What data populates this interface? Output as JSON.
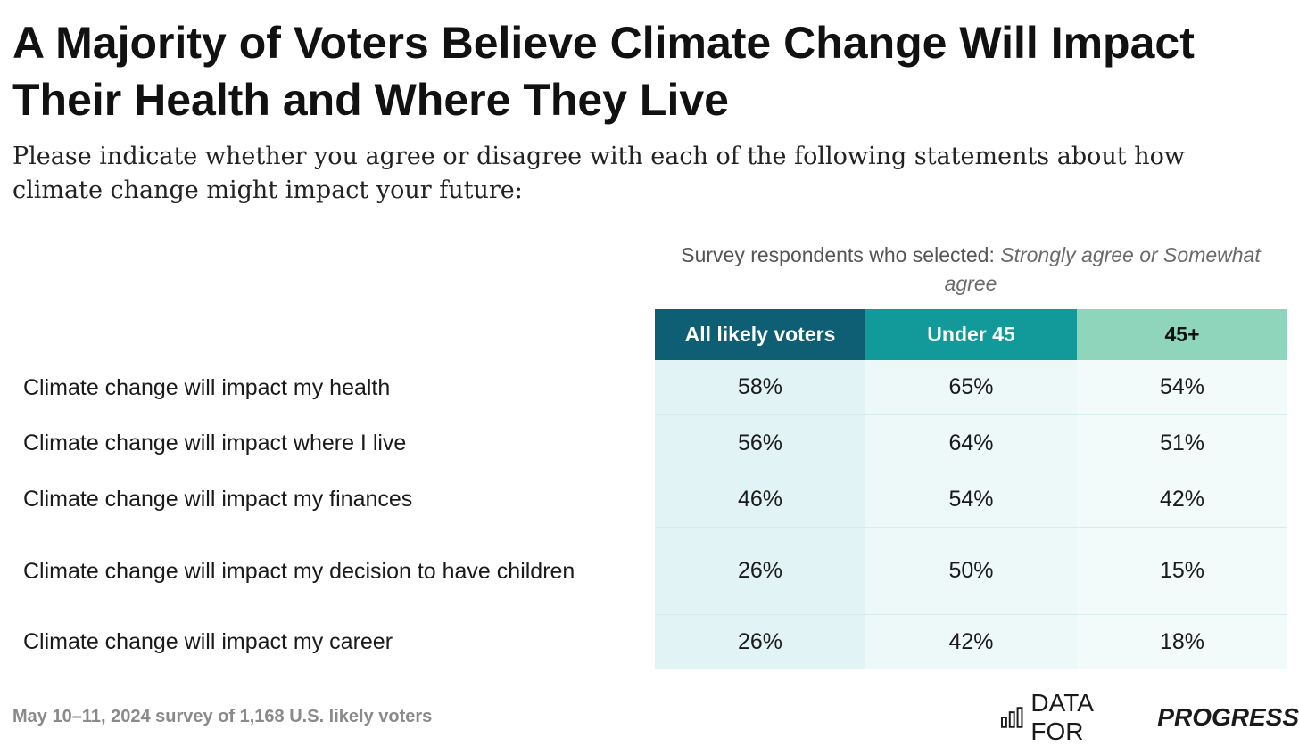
{
  "title": "A Majority of Voters Believe Climate Change Will Impact Their Health and Where They Live",
  "subtitle": "Please indicate whether you agree or disagree with each of the following statements about how climate change might impact your future:",
  "selection_note": {
    "prefix": "Survey respondents who selected: ",
    "emphasis": "Strongly agree or Somewhat agree"
  },
  "colors": {
    "header_all": "#0e5e74",
    "header_under45": "#12999a",
    "header_45plus": "#8fd5bc",
    "col1_bg": "#e2f3f5",
    "col2_bg": "#edf8f9",
    "col3_bg": "#f2fafa"
  },
  "footer": "May 10–11, 2024 survey of 1,168 U.S. likely voters",
  "logo": {
    "prefix": "DATA FOR",
    "strong": "PROGRESS",
    "icon": "bar-chart-logo-icon"
  },
  "chart_data": {
    "type": "table",
    "title": "A Majority of Voters Believe Climate Change Will Impact Their Health and Where They Live",
    "columns": [
      "All likely voters",
      "Under 45",
      "45+"
    ],
    "rows": [
      {
        "label": "Climate change will impact my health",
        "values": [
          "58%",
          "65%",
          "54%"
        ]
      },
      {
        "label": "Climate change will impact where I live",
        "values": [
          "56%",
          "64%",
          "51%"
        ]
      },
      {
        "label": "Climate change will impact my finances",
        "values": [
          "46%",
          "54%",
          "42%"
        ]
      },
      {
        "label": "Climate change will impact my decision to have children",
        "values": [
          "26%",
          "50%",
          "15%"
        ]
      },
      {
        "label": "Climate change will impact my career",
        "values": [
          "26%",
          "42%",
          "18%"
        ]
      }
    ]
  }
}
